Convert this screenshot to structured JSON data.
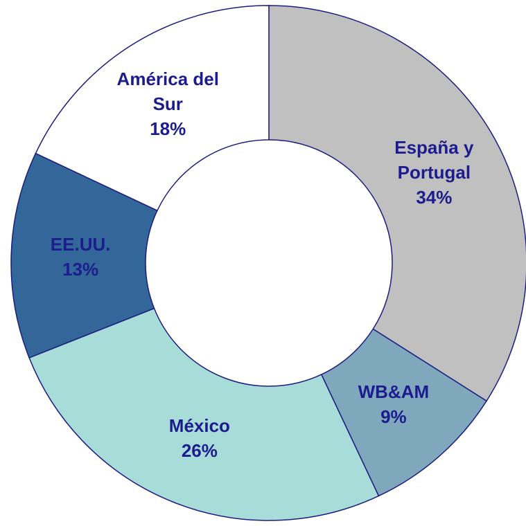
{
  "chart_data": {
    "type": "donut",
    "categories": [
      "España y Portugal",
      "WB&AM",
      "México",
      "EE.UU.",
      "América del Sur"
    ],
    "values": [
      34,
      9,
      26,
      13,
      18
    ],
    "value_labels": [
      "34%",
      "9%",
      "26%",
      "13%",
      "18%"
    ],
    "colors": [
      "#c0c0c0",
      "#7fa8bd",
      "#a8dcd8",
      "#336699",
      "#ffffff"
    ]
  }
}
